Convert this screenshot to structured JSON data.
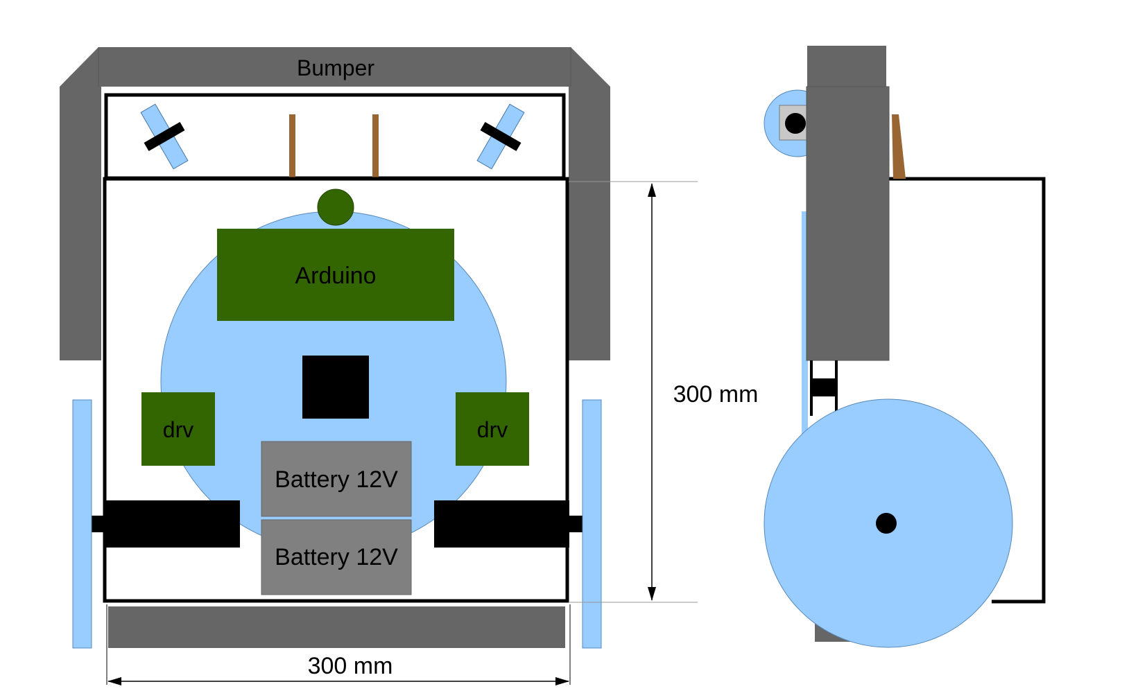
{
  "labels": {
    "bumper": "Bumper",
    "controller": "Arduino",
    "driver_left": "drv",
    "driver_right": "drv",
    "battery_top": "Battery 12V",
    "battery_bottom": "Battery 12V",
    "dimension_width": "300 mm",
    "dimension_height": "300 mm"
  },
  "colors": {
    "bumper": "#666666",
    "wheel": "#99ccff",
    "board": "#336600",
    "battery": "#808080",
    "motor": "#000000",
    "sensor_post": "#996633",
    "outline": "#000000"
  }
}
